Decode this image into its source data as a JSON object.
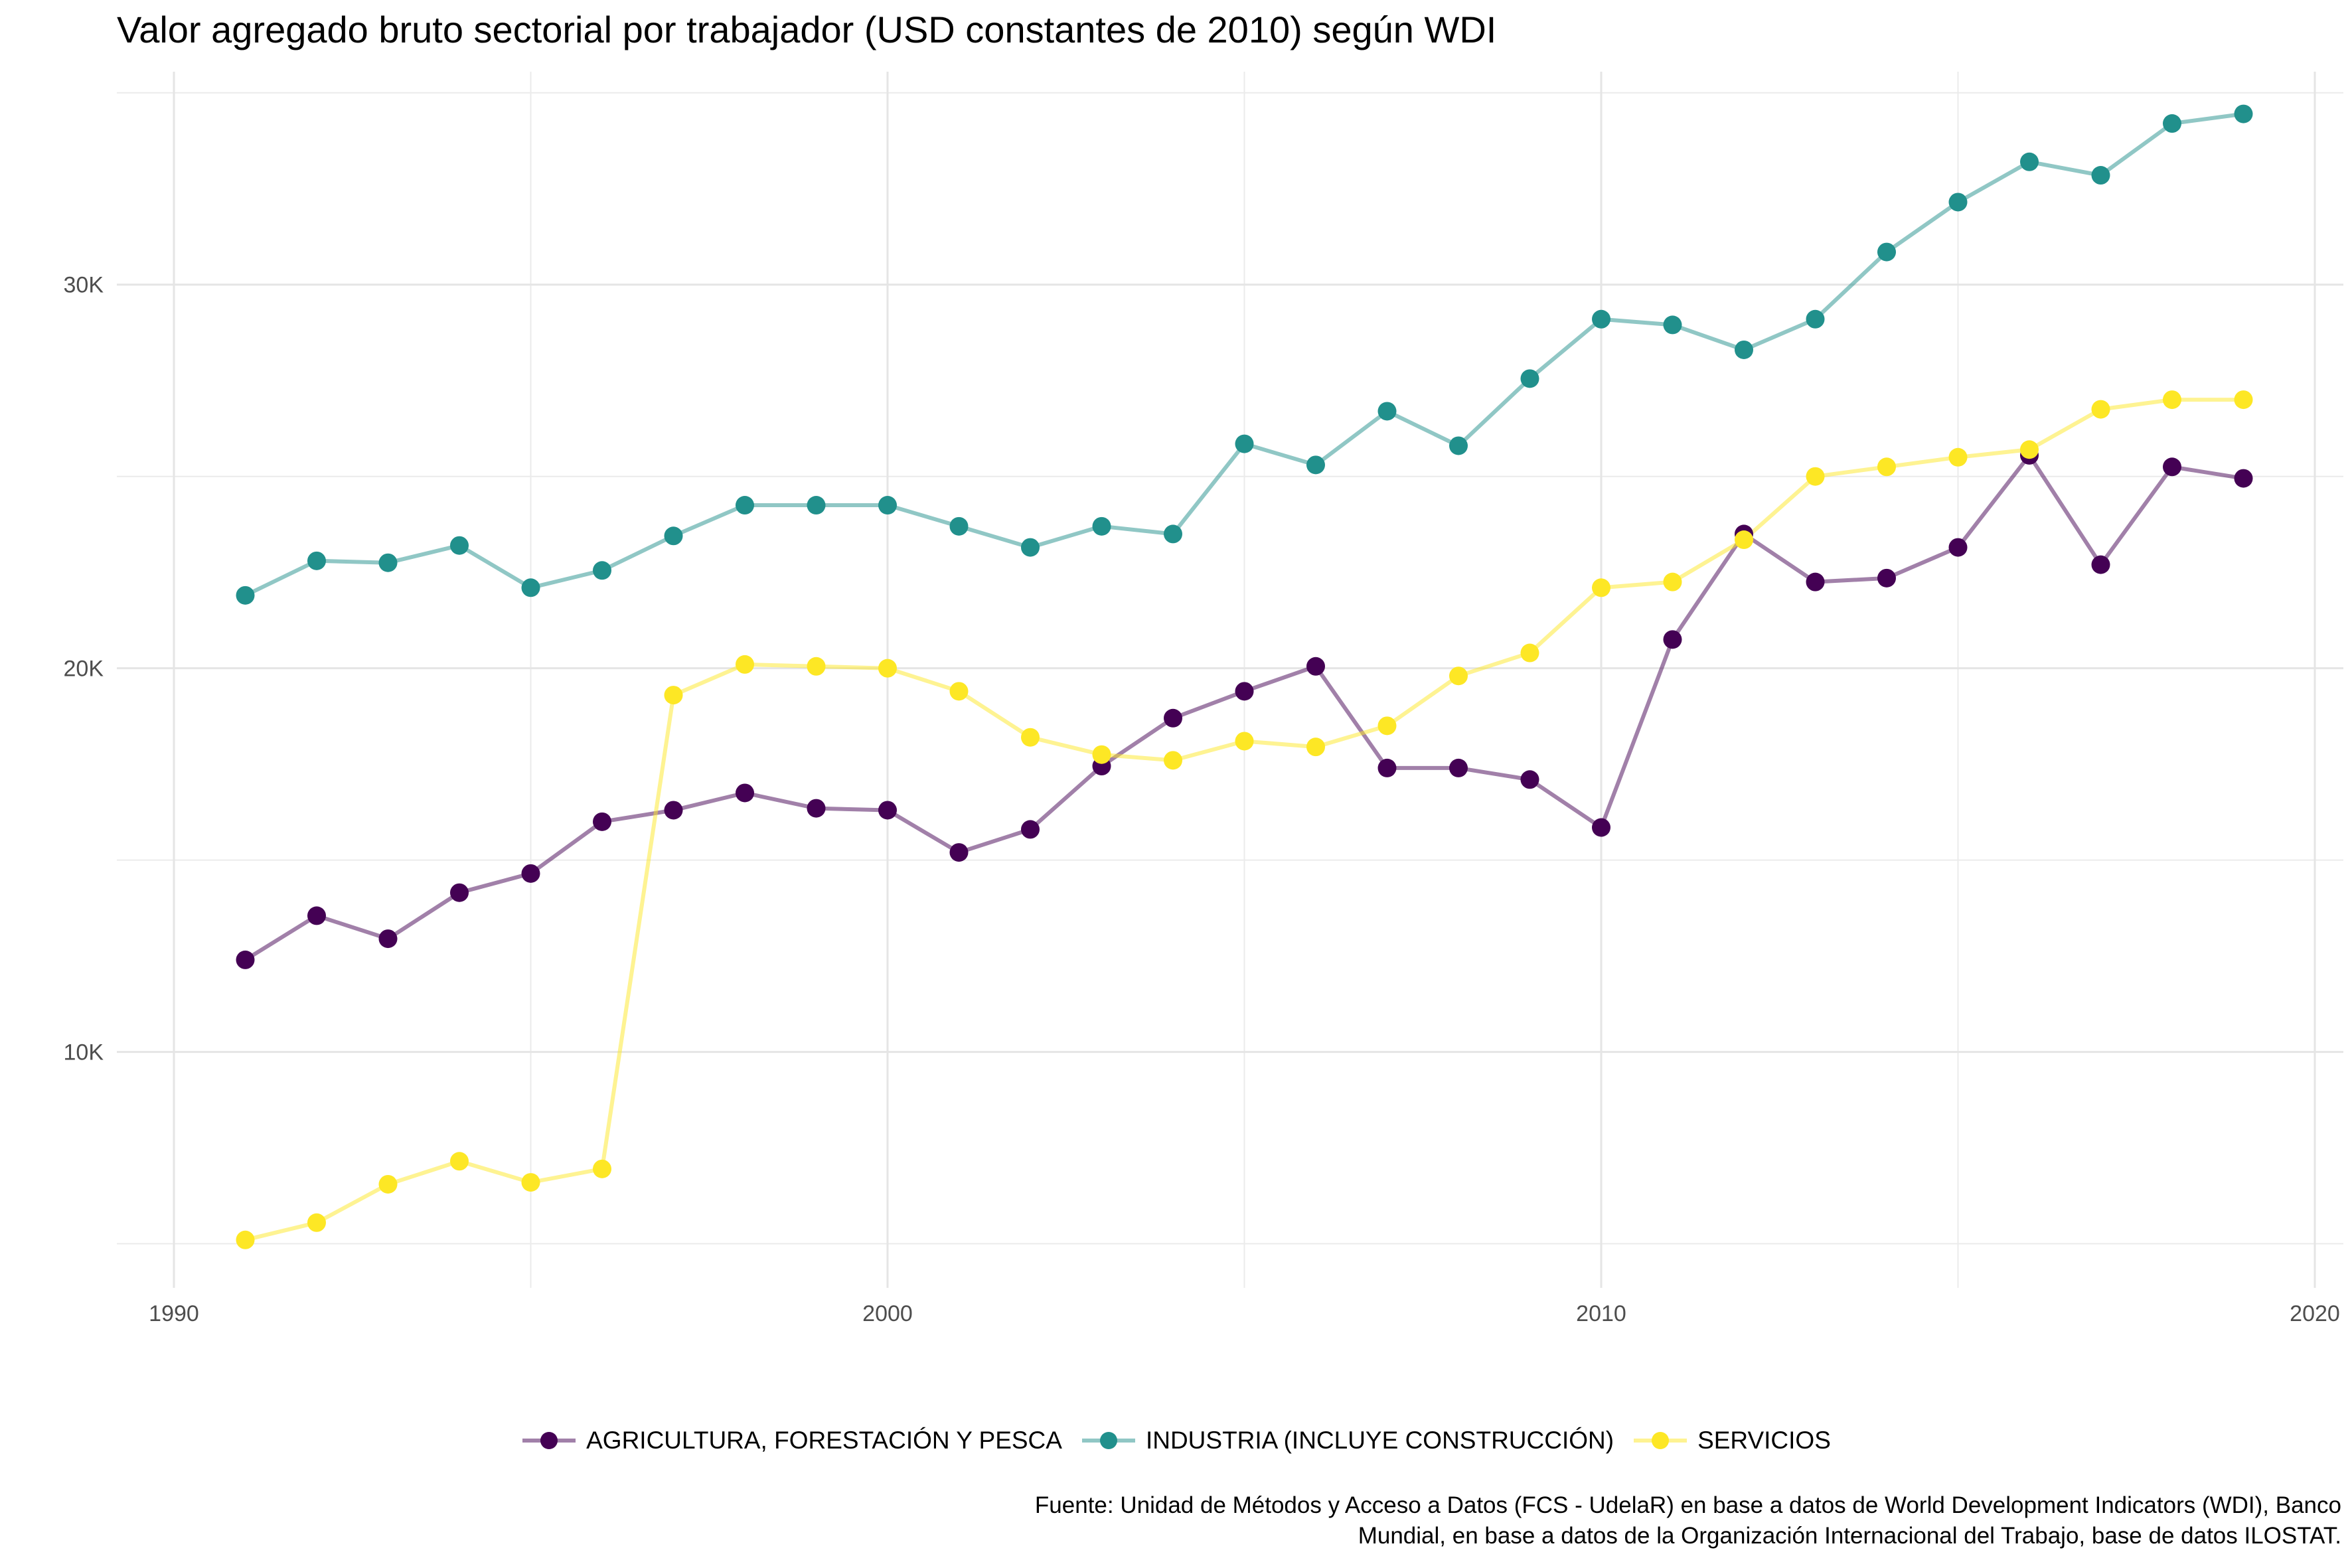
{
  "chart_data": {
    "type": "line",
    "title": "Valor agregado bruto sectorial por trabajador (USD constantes de 2010) según WDI",
    "xlabel": "",
    "ylabel": "",
    "xlim": [
      1989.2,
      2020.4
    ],
    "ylim": [
      3850,
      35550
    ],
    "x_ticks": [
      1990,
      2000,
      2010,
      2020
    ],
    "x_tick_labels": [
      "1990",
      "2000",
      "2010",
      "2020"
    ],
    "y_ticks": [
      10000,
      20000,
      30000
    ],
    "y_tick_labels": [
      "10K",
      "20K",
      "30K"
    ],
    "grid": true,
    "legend_position": "bottom",
    "x": [
      1991,
      1992,
      1993,
      1994,
      1995,
      1996,
      1997,
      1998,
      1999,
      2000,
      2001,
      2002,
      2003,
      2004,
      2005,
      2006,
      2007,
      2008,
      2009,
      2010,
      2011,
      2012,
      2013,
      2014,
      2015,
      2016,
      2017,
      2018,
      2019
    ],
    "series": [
      {
        "name": "AGRICULTURA, FORESTACIÓN Y PESCA",
        "color": "#440154",
        "values": [
          12400,
          13550,
          12950,
          14150,
          14650,
          16000,
          16300,
          16750,
          16350,
          16300,
          15200,
          15800,
          17450,
          18700,
          19400,
          20050,
          17400,
          17400,
          17100,
          15850,
          20750,
          23500,
          22250,
          22350,
          23150,
          25550,
          22700,
          25250,
          24950
        ]
      },
      {
        "name": "INDUSTRIA (INCLUYE CONSTRUCCIÓN)",
        "color": "#21908C",
        "values": [
          21900,
          22800,
          22750,
          23200,
          22100,
          22550,
          23450,
          24250,
          24250,
          24250,
          23700,
          23150,
          23700,
          23500,
          25850,
          25300,
          26700,
          25800,
          27550,
          29100,
          28950,
          28300,
          29100,
          30850,
          32150,
          33200,
          32850,
          34200,
          34450
        ]
      },
      {
        "name": "SERVICIOS",
        "color": "#FDE725",
        "values": [
          5100,
          5550,
          6550,
          7150,
          6600,
          6950,
          19300,
          20100,
          20050,
          20000,
          19400,
          18200,
          17750,
          17600,
          18100,
          17950,
          18500,
          19800,
          20400,
          22100,
          22250,
          23350,
          25000,
          25250,
          25500,
          25700,
          26750,
          27000,
          27000
        ]
      }
    ]
  },
  "caption": {
    "line1": "Fuente: Unidad de Métodos y Acceso a Datos (FCS - UdelaR) en base a datos de World Development Indicators (WDI), Banco",
    "line2": "Mundial, en base a datos de la Organización Internacional del Trabajo, base de datos ILOSTAT."
  }
}
